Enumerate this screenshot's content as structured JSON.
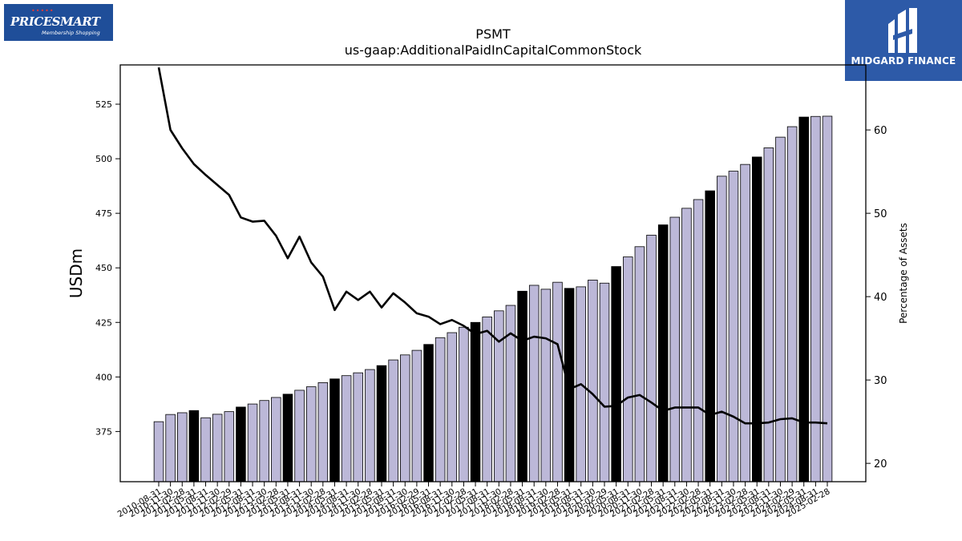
{
  "logos": {
    "left_brand": "PRICESMART",
    "left_tagline": "Membership Shopping",
    "right_name": "MIDGARD FINANCE"
  },
  "chart_data": {
    "type": "bar",
    "title": "PSMT",
    "subtitle": "us-gaap:AdditionalPaidInCapitalCommonStock",
    "ylabel": "USDm",
    "y2label": "Percentage of Assets",
    "ylim": [
      352,
      543
    ],
    "y2lim": [
      17.8,
      67.8
    ],
    "yticks": [
      375,
      400,
      425,
      450,
      475,
      500,
      525
    ],
    "y2ticks": [
      20,
      30,
      40,
      50,
      60
    ],
    "colors": {
      "bar": "#bcb8d8",
      "bar_highlight": "#000000",
      "line": "#000000"
    },
    "categories": [
      "2010-08-31",
      "2010-11-30",
      "2011-02-28",
      "2011-05-31",
      "2011-08-31",
      "2011-11-30",
      "2012-02-29",
      "2012-05-31",
      "2012-08-31",
      "2012-11-30",
      "2013-02-28",
      "2013-05-31",
      "2013-08-31",
      "2013-11-30",
      "2014-02-28",
      "2014-05-31",
      "2014-08-31",
      "2014-11-30",
      "2015-02-28",
      "2015-05-31",
      "2015-08-31",
      "2015-11-30",
      "2016-02-29",
      "2016-05-31",
      "2016-08-31",
      "2016-11-30",
      "2017-02-28",
      "2017-05-31",
      "2017-08-31",
      "2017-11-30",
      "2018-02-28",
      "2018-05-31",
      "2018-08-31",
      "2018-11-30",
      "2019-02-28",
      "2019-05-31",
      "2019-08-31",
      "2019-11-30",
      "2020-02-29",
      "2020-05-31",
      "2020-08-31",
      "2020-11-30",
      "2021-02-28",
      "2021-05-31",
      "2021-08-31",
      "2021-11-30",
      "2022-02-28",
      "2022-05-31",
      "2022-08-31",
      "2022-11-30",
      "2023-02-28",
      "2023-05-31",
      "2023-08-31",
      "2023-11-30",
      "2024-02-29",
      "2024-05-31",
      "2024-08-31",
      "2025-02-28"
    ],
    "series": [
      {
        "kind": "bar",
        "axis": "left",
        "values": [
          379.5,
          382.8,
          383.6,
          384.6,
          381.3,
          382.9,
          384.1,
          386.2,
          387.6,
          389.2,
          390.6,
          392.1,
          393.9,
          395.5,
          397.4,
          399.1,
          400.6,
          401.9,
          403.4,
          405.2,
          407.8,
          410.1,
          412.2,
          414.9,
          418.0,
          420.3,
          422.8,
          425.0,
          427.5,
          430.3,
          432.8,
          439.3,
          442.0,
          440.2,
          443.4,
          440.6,
          441.3,
          444.4,
          443.0,
          450.6,
          455.0,
          459.7,
          465.0,
          469.7,
          473.2,
          477.3,
          481.3,
          485.3,
          492.0,
          494.3,
          497.4,
          500.8,
          505.0,
          509.9,
          514.7,
          519.1,
          519.4,
          519.5
        ],
        "highlight": [
          false,
          false,
          false,
          true,
          false,
          false,
          false,
          true,
          false,
          false,
          false,
          true,
          false,
          false,
          false,
          true,
          false,
          false,
          false,
          true,
          false,
          false,
          false,
          true,
          false,
          false,
          false,
          true,
          false,
          false,
          false,
          true,
          false,
          false,
          false,
          true,
          false,
          false,
          false,
          true,
          false,
          false,
          false,
          true,
          false,
          false,
          false,
          true,
          false,
          false,
          false,
          true,
          false,
          false,
          false,
          true,
          false,
          false
        ]
      },
      {
        "kind": "line",
        "axis": "right",
        "values": [
          67.5,
          60.0,
          57.8,
          55.9,
          54.6,
          53.4,
          52.2,
          49.5,
          49.0,
          49.1,
          47.3,
          44.6,
          47.2,
          44.1,
          42.4,
          38.4,
          40.6,
          39.6,
          40.6,
          38.7,
          40.4,
          39.3,
          38.0,
          37.6,
          36.7,
          37.2,
          36.5,
          35.5,
          35.9,
          34.6,
          35.6,
          34.7,
          35.2,
          35.0,
          34.3,
          28.9,
          29.5,
          28.3,
          26.8,
          26.9,
          27.9,
          28.2,
          27.3,
          26.3,
          26.7,
          26.7,
          26.7,
          25.8,
          26.2,
          25.6,
          24.8,
          24.8,
          24.9,
          25.3,
          25.4,
          24.9,
          24.9,
          24.8
        ]
      }
    ]
  }
}
